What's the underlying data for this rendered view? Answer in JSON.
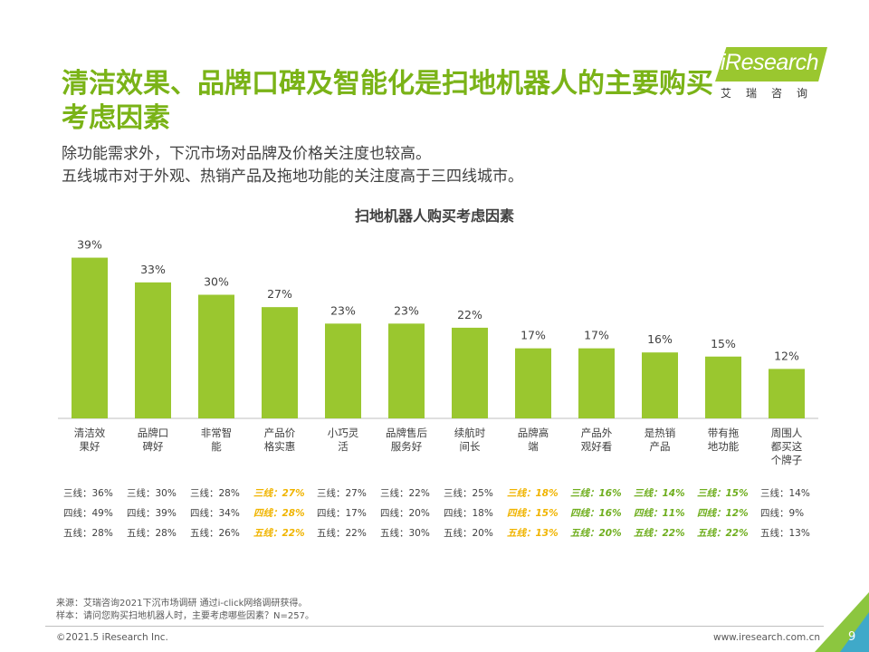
{
  "header": {
    "title": "清洁效果、品牌口碑及智能化是扫地机器人的主要购买考虑因素",
    "subtitle_lines": [
      "除功能需求外，下沉市场对品牌及价格关注度也较高。",
      "五线城市对于外观、热销产品及拖地功能的关注度高于三四线城市。"
    ]
  },
  "logo": {
    "text": "iResearch",
    "sub": "艾瑞咨询"
  },
  "chart_data": {
    "type": "bar",
    "title": "扫地机器人购买考虑因素",
    "categories": [
      "清洁效果好",
      "品牌口碑好",
      "非常智能",
      "产品价格实惠",
      "小巧灵活",
      "品牌售后服务好",
      "续航时间长",
      "品牌高端",
      "产品外观好看",
      "是热销产品",
      "带有拖地功能",
      "周围人都买这个牌子"
    ],
    "category_lines": [
      [
        "清洁效",
        "果好"
      ],
      [
        "品牌口",
        "碑好"
      ],
      [
        "非常智",
        "能"
      ],
      [
        "产品价",
        "格实惠"
      ],
      [
        "小巧灵",
        "活"
      ],
      [
        "品牌售后",
        "服务好"
      ],
      [
        "续航时",
        "间长"
      ],
      [
        "品牌高",
        "端"
      ],
      [
        "产品外",
        "观好看"
      ],
      [
        "是热销",
        "产品"
      ],
      [
        "带有拖",
        "地功能"
      ],
      [
        "周围人",
        "都买这",
        "个牌子"
      ]
    ],
    "values": [
      39,
      33,
      30,
      27,
      23,
      23,
      22,
      17,
      17,
      16,
      15,
      12
    ],
    "labels": [
      "39%",
      "33%",
      "30%",
      "27%",
      "23%",
      "23%",
      "22%",
      "17%",
      "17%",
      "16%",
      "15%",
      "12%"
    ],
    "ylim": [
      0,
      40
    ],
    "bar_color": "#9AC72F"
  },
  "breakdown": [
    {
      "rows": [
        {
          "text": "三线：36%",
          "hl": ""
        },
        {
          "text": "四线：49%",
          "hl": ""
        },
        {
          "text": "五线：28%",
          "hl": ""
        }
      ]
    },
    {
      "rows": [
        {
          "text": "三线：30%",
          "hl": ""
        },
        {
          "text": "四线：39%",
          "hl": ""
        },
        {
          "text": "五线：28%",
          "hl": ""
        }
      ]
    },
    {
      "rows": [
        {
          "text": "三线：28%",
          "hl": ""
        },
        {
          "text": "四线：34%",
          "hl": ""
        },
        {
          "text": "五线：26%",
          "hl": ""
        }
      ]
    },
    {
      "rows": [
        {
          "text": "三线：27%",
          "hl": "yellow"
        },
        {
          "text": "四线：28%",
          "hl": "yellow"
        },
        {
          "text": "五线：22%",
          "hl": "yellow"
        }
      ]
    },
    {
      "rows": [
        {
          "text": "三线：27%",
          "hl": ""
        },
        {
          "text": "四线：17%",
          "hl": ""
        },
        {
          "text": "五线：22%",
          "hl": ""
        }
      ]
    },
    {
      "rows": [
        {
          "text": "三线：22%",
          "hl": ""
        },
        {
          "text": "四线：20%",
          "hl": ""
        },
        {
          "text": "五线：30%",
          "hl": ""
        }
      ]
    },
    {
      "rows": [
        {
          "text": "三线：25%",
          "hl": ""
        },
        {
          "text": "四线：18%",
          "hl": ""
        },
        {
          "text": "五线：20%",
          "hl": ""
        }
      ]
    },
    {
      "rows": [
        {
          "text": "三线：18%",
          "hl": "yellow"
        },
        {
          "text": "四线：15%",
          "hl": "yellow"
        },
        {
          "text": "五线：13%",
          "hl": "yellow"
        }
      ]
    },
    {
      "rows": [
        {
          "text": "三线：16%",
          "hl": "green"
        },
        {
          "text": "四线：16%",
          "hl": "green"
        },
        {
          "text": "五线：20%",
          "hl": "green"
        }
      ]
    },
    {
      "rows": [
        {
          "text": "三线：14%",
          "hl": "green"
        },
        {
          "text": "四线：11%",
          "hl": "green"
        },
        {
          "text": "五线：22%",
          "hl": "green"
        }
      ]
    },
    {
      "rows": [
        {
          "text": "三线：15%",
          "hl": "green"
        },
        {
          "text": "四线：12%",
          "hl": "green"
        },
        {
          "text": "五线：22%",
          "hl": "green"
        }
      ]
    },
    {
      "rows": [
        {
          "text": "三线：14%",
          "hl": ""
        },
        {
          "text": "四线：9%",
          "hl": ""
        },
        {
          "text": "五线：13%",
          "hl": ""
        }
      ]
    }
  ],
  "footnote": {
    "source": "来源：艾瑞咨询2021下沉市场调研 通过i-click网络调研获得。",
    "sample": "样本：请问您购买扫地机器人时，主要考虑哪些因素？N=257。"
  },
  "footer": {
    "copyright": "©2021.5 iResearch Inc.",
    "website": "www.iresearch.com.cn",
    "page": "9"
  }
}
